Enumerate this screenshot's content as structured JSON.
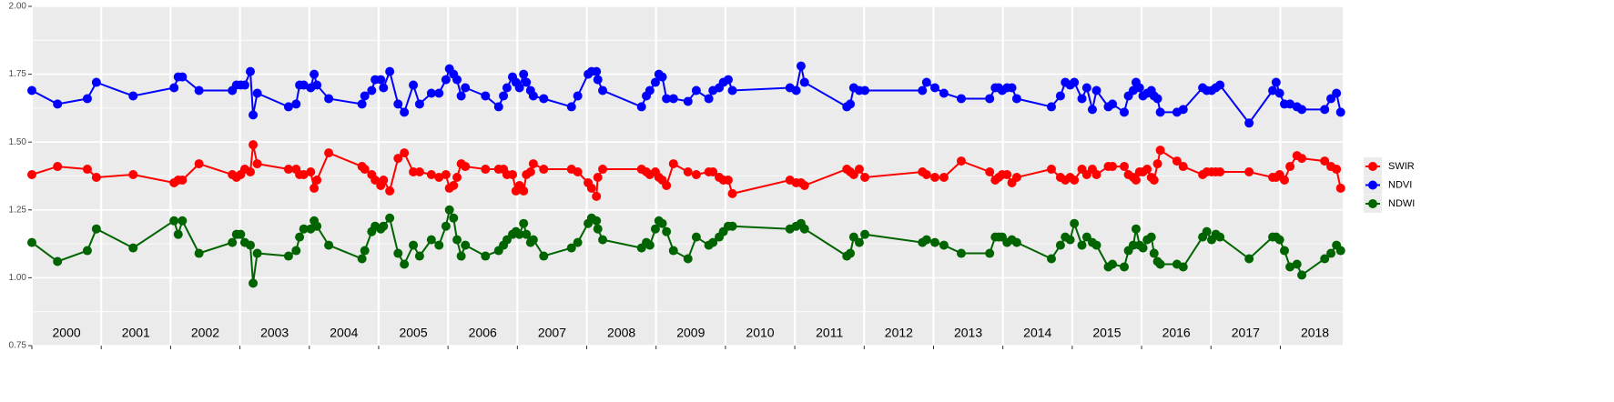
{
  "chart_data": {
    "type": "line",
    "x": [
      2000.0,
      2000.37,
      2000.8,
      2000.93,
      2001.46,
      2002.05,
      2002.11,
      2002.17,
      2002.41,
      2002.89,
      2002.95,
      2003.01,
      2003.07,
      2003.15,
      2003.19,
      2003.25,
      2003.7,
      2003.81,
      2003.86,
      2003.92,
      2004.02,
      2004.07,
      2004.11,
      2004.28,
      2004.76,
      2004.8,
      2004.9,
      2004.95,
      2005.03,
      2005.07,
      2005.16,
      2005.28,
      2005.37,
      2005.5,
      2005.59,
      2005.76,
      2005.87,
      2005.97,
      2006.02,
      2006.08,
      2006.13,
      2006.19,
      2006.25,
      2006.54,
      2006.73,
      2006.8,
      2006.85,
      2006.93,
      2006.98,
      2007.03,
      2007.09,
      2007.13,
      2007.19,
      2007.23,
      2007.38,
      2007.78,
      2007.87,
      2008.02,
      2008.07,
      2008.14,
      2008.16,
      2008.23,
      2008.79,
      2008.86,
      2008.91,
      2008.99,
      2009.04,
      2009.09,
      2009.15,
      2009.25,
      2009.46,
      2009.58,
      2009.76,
      2009.82,
      2009.91,
      2009.97,
      2010.04,
      2010.1,
      2010.93,
      2011.02,
      2011.09,
      2011.14,
      2011.75,
      2011.8,
      2011.85,
      2011.93,
      2012.01,
      2012.84,
      2012.9,
      2013.02,
      2013.15,
      2013.4,
      2013.81,
      2013.89,
      2013.94,
      2013.99,
      2014.06,
      2014.13,
      2014.2,
      2014.7,
      2014.83,
      2014.9,
      2014.97,
      2015.03,
      2015.14,
      2015.21,
      2015.29,
      2015.35,
      2015.52,
      2015.58,
      2015.75,
      2015.81,
      2015.88,
      2015.92,
      2015.97,
      2016.02,
      2016.08,
      2016.14,
      2016.18,
      2016.23,
      2016.27,
      2016.51,
      2016.6,
      2016.88,
      2016.94,
      2017.01,
      2017.07,
      2017.13,
      2017.55,
      2017.89,
      2017.94,
      2017.99,
      2018.06,
      2018.14,
      2018.24,
      2018.31,
      2018.64,
      2018.73,
      2018.81,
      2018.87
    ],
    "series": [
      {
        "name": "SWIR",
        "color": "#ff0000",
        "values": [
          1.38,
          1.41,
          1.4,
          1.37,
          1.38,
          1.35,
          1.36,
          1.36,
          1.42,
          1.38,
          1.37,
          1.38,
          1.4,
          1.39,
          1.49,
          1.42,
          1.4,
          1.4,
          1.38,
          1.38,
          1.39,
          1.33,
          1.36,
          1.46,
          1.41,
          1.4,
          1.38,
          1.36,
          1.34,
          1.36,
          1.32,
          1.44,
          1.46,
          1.39,
          1.39,
          1.38,
          1.37,
          1.38,
          1.33,
          1.34,
          1.37,
          1.42,
          1.41,
          1.4,
          1.4,
          1.4,
          1.38,
          1.38,
          1.32,
          1.34,
          1.32,
          1.38,
          1.39,
          1.42,
          1.4,
          1.4,
          1.39,
          1.35,
          1.33,
          1.3,
          1.37,
          1.4,
          1.4,
          1.39,
          1.38,
          1.39,
          1.37,
          1.36,
          1.34,
          1.42,
          1.39,
          1.38,
          1.39,
          1.39,
          1.37,
          1.36,
          1.36,
          1.31,
          1.36,
          1.35,
          1.35,
          1.34,
          1.4,
          1.39,
          1.38,
          1.4,
          1.37,
          1.39,
          1.38,
          1.37,
          1.37,
          1.43,
          1.39,
          1.36,
          1.37,
          1.38,
          1.38,
          1.35,
          1.37,
          1.4,
          1.37,
          1.36,
          1.37,
          1.36,
          1.4,
          1.38,
          1.4,
          1.38,
          1.41,
          1.41,
          1.41,
          1.38,
          1.37,
          1.36,
          1.39,
          1.39,
          1.4,
          1.37,
          1.36,
          1.42,
          1.47,
          1.43,
          1.41,
          1.38,
          1.39,
          1.39,
          1.39,
          1.39,
          1.39,
          1.37,
          1.37,
          1.38,
          1.36,
          1.41,
          1.45,
          1.44,
          1.43,
          1.41,
          1.4,
          1.33
        ]
      },
      {
        "name": "NDVI",
        "color": "#0000ff",
        "values": [
          1.69,
          1.64,
          1.66,
          1.72,
          1.67,
          1.7,
          1.74,
          1.74,
          1.69,
          1.69,
          1.71,
          1.71,
          1.71,
          1.76,
          1.6,
          1.68,
          1.63,
          1.64,
          1.71,
          1.71,
          1.7,
          1.75,
          1.71,
          1.66,
          1.64,
          1.67,
          1.69,
          1.73,
          1.73,
          1.7,
          1.76,
          1.64,
          1.61,
          1.71,
          1.64,
          1.68,
          1.68,
          1.73,
          1.77,
          1.75,
          1.73,
          1.67,
          1.7,
          1.67,
          1.63,
          1.67,
          1.7,
          1.74,
          1.72,
          1.7,
          1.75,
          1.72,
          1.69,
          1.67,
          1.66,
          1.63,
          1.67,
          1.75,
          1.76,
          1.76,
          1.73,
          1.69,
          1.63,
          1.67,
          1.69,
          1.72,
          1.75,
          1.74,
          1.66,
          1.66,
          1.65,
          1.69,
          1.66,
          1.69,
          1.7,
          1.72,
          1.73,
          1.69,
          1.7,
          1.69,
          1.78,
          1.72,
          1.63,
          1.64,
          1.7,
          1.69,
          1.69,
          1.69,
          1.72,
          1.7,
          1.68,
          1.66,
          1.66,
          1.7,
          1.7,
          1.69,
          1.7,
          1.7,
          1.66,
          1.63,
          1.67,
          1.72,
          1.71,
          1.72,
          1.66,
          1.7,
          1.62,
          1.69,
          1.63,
          1.64,
          1.61,
          1.67,
          1.69,
          1.72,
          1.7,
          1.67,
          1.68,
          1.69,
          1.67,
          1.66,
          1.61,
          1.61,
          1.62,
          1.7,
          1.69,
          1.69,
          1.7,
          1.71,
          1.57,
          1.69,
          1.72,
          1.68,
          1.64,
          1.64,
          1.63,
          1.62,
          1.62,
          1.66,
          1.68,
          1.61
        ]
      },
      {
        "name": "NDWI",
        "color": "#006400",
        "values": [
          1.13,
          1.06,
          1.1,
          1.18,
          1.11,
          1.21,
          1.16,
          1.21,
          1.09,
          1.13,
          1.16,
          1.16,
          1.13,
          1.12,
          0.98,
          1.09,
          1.08,
          1.1,
          1.15,
          1.18,
          1.18,
          1.21,
          1.19,
          1.12,
          1.07,
          1.1,
          1.17,
          1.19,
          1.18,
          1.19,
          1.22,
          1.09,
          1.05,
          1.12,
          1.08,
          1.14,
          1.12,
          1.19,
          1.25,
          1.22,
          1.14,
          1.08,
          1.12,
          1.08,
          1.1,
          1.12,
          1.14,
          1.16,
          1.17,
          1.16,
          1.2,
          1.16,
          1.13,
          1.14,
          1.08,
          1.11,
          1.13,
          1.2,
          1.22,
          1.21,
          1.18,
          1.14,
          1.11,
          1.13,
          1.12,
          1.18,
          1.21,
          1.2,
          1.17,
          1.1,
          1.07,
          1.15,
          1.12,
          1.13,
          1.15,
          1.17,
          1.19,
          1.19,
          1.18,
          1.19,
          1.2,
          1.18,
          1.08,
          1.09,
          1.15,
          1.13,
          1.16,
          1.13,
          1.14,
          1.13,
          1.12,
          1.09,
          1.09,
          1.15,
          1.15,
          1.15,
          1.13,
          1.14,
          1.13,
          1.07,
          1.12,
          1.15,
          1.14,
          1.2,
          1.12,
          1.15,
          1.13,
          1.12,
          1.04,
          1.05,
          1.04,
          1.1,
          1.12,
          1.18,
          1.12,
          1.11,
          1.14,
          1.15,
          1.09,
          1.06,
          1.05,
          1.05,
          1.04,
          1.15,
          1.17,
          1.14,
          1.16,
          1.15,
          1.07,
          1.15,
          1.15,
          1.14,
          1.1,
          1.04,
          1.05,
          1.01,
          1.07,
          1.09,
          1.12,
          1.1
        ]
      }
    ],
    "xlim": [
      2000,
      2018.9
    ],
    "xticks": [
      2000,
      2001,
      2002,
      2003,
      2004,
      2005,
      2006,
      2007,
      2008,
      2009,
      2010,
      2011,
      2012,
      2013,
      2014,
      2015,
      2016,
      2017,
      2018
    ],
    "ylim": [
      0.75,
      2.0
    ],
    "yticks": [
      {
        "value": 0.75,
        "label": "0.75"
      },
      {
        "value": 1.0,
        "label": "1.00"
      },
      {
        "value": 1.25,
        "label": "1.25"
      },
      {
        "value": 1.5,
        "label": "1.50"
      },
      {
        "value": 1.75,
        "label": "1.75"
      },
      {
        "value": 2.0,
        "label": "2.00"
      }
    ],
    "annotations": [
      {
        "x": 2000.5,
        "text": "2000"
      },
      {
        "x": 2001.5,
        "text": "2001"
      },
      {
        "x": 2002.5,
        "text": "2002"
      },
      {
        "x": 2003.5,
        "text": "2003"
      },
      {
        "x": 2004.5,
        "text": "2004"
      },
      {
        "x": 2005.5,
        "text": "2005"
      },
      {
        "x": 2006.5,
        "text": "2006"
      },
      {
        "x": 2007.5,
        "text": "2007"
      },
      {
        "x": 2008.5,
        "text": "2008"
      },
      {
        "x": 2009.5,
        "text": "2009"
      },
      {
        "x": 2010.5,
        "text": "2010"
      },
      {
        "x": 2011.5,
        "text": "2011"
      },
      {
        "x": 2012.5,
        "text": "2012"
      },
      {
        "x": 2013.5,
        "text": "2013"
      },
      {
        "x": 2014.5,
        "text": "2014"
      },
      {
        "x": 2015.5,
        "text": "2015"
      },
      {
        "x": 2016.5,
        "text": "2016"
      },
      {
        "x": 2017.5,
        "text": "2017"
      },
      {
        "x": 2018.5,
        "text": "2018"
      }
    ],
    "grid": true,
    "legend": "right"
  }
}
